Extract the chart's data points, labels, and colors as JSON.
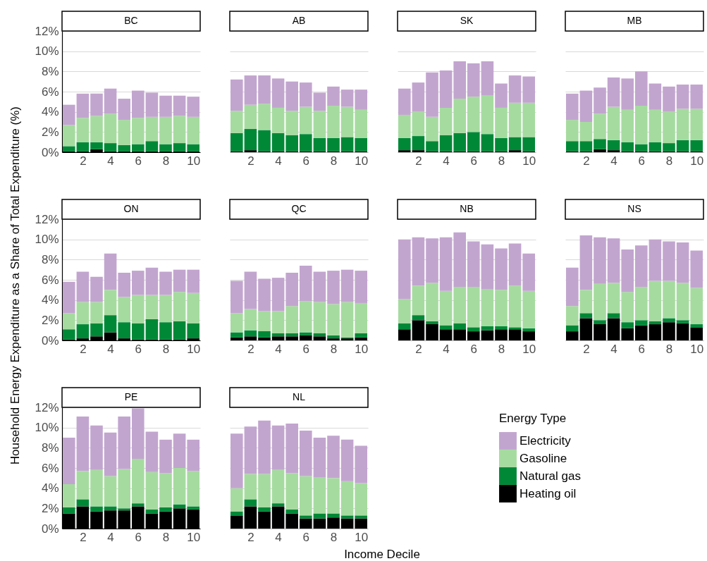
{
  "chart_data": [
    {
      "type": "bar",
      "title": "BC",
      "legend": "bottom right",
      "legend_title": "Energy Type",
      "stacked": true,
      "x": [
        1,
        2,
        3,
        4,
        5,
        6,
        7,
        8,
        9,
        10
      ],
      "xlim": [
        0.5,
        10.5
      ],
      "xticks": [
        2,
        4,
        6,
        8,
        10
      ],
      "ylim": [
        0,
        12
      ],
      "yticks": [
        {
          "value": 0,
          "label": "0%"
        },
        {
          "value": 2,
          "label": "2%"
        },
        {
          "value": 4,
          "label": "4%"
        },
        {
          "value": 6,
          "label": "6%"
        },
        {
          "value": 8,
          "label": "8%"
        },
        {
          "value": 10,
          "label": "10%"
        },
        {
          "value": 12,
          "label": "12%"
        }
      ],
      "grid": "y",
      "series": [
        {
          "name": "Heating oil",
          "color": "#000000",
          "values": [
            0.1,
            0.1,
            0.3,
            0.1,
            0.1,
            0.1,
            0.1,
            0.1,
            0.1,
            0.1
          ]
        },
        {
          "name": "Natural gas",
          "color": "#008837",
          "values": [
            0.5,
            0.9,
            0.7,
            0.8,
            0.6,
            0.7,
            1.0,
            0.7,
            0.8,
            0.7
          ]
        },
        {
          "name": "Gasoline",
          "color": "#a6dba0",
          "values": [
            2.1,
            2.4,
            2.6,
            2.9,
            2.5,
            2.6,
            2.4,
            2.7,
            2.7,
            2.7
          ]
        },
        {
          "name": "Electricity",
          "color": "#c2a5cf",
          "values": [
            2.0,
            2.4,
            2.2,
            2.5,
            2.1,
            2.7,
            2.4,
            2.1,
            2.0,
            2.0
          ]
        }
      ]
    },
    {
      "type": "bar",
      "title": "AB",
      "stacked": true,
      "x": [
        1,
        2,
        3,
        4,
        5,
        6,
        7,
        8,
        9,
        10
      ],
      "xlim": [
        0.5,
        10.5
      ],
      "xticks": [
        2,
        4,
        6,
        8,
        10
      ],
      "ylim": [
        0,
        12
      ],
      "yticks": [
        {
          "value": 0,
          "label": "0%"
        },
        {
          "value": 2,
          "label": "2%"
        },
        {
          "value": 4,
          "label": "4%"
        },
        {
          "value": 6,
          "label": "6%"
        },
        {
          "value": 8,
          "label": "8%"
        },
        {
          "value": 10,
          "label": "10%"
        },
        {
          "value": 12,
          "label": "12%"
        }
      ],
      "grid": "y",
      "tick_labels": "x",
      "series": [
        {
          "name": "Heating oil",
          "color": "#000000",
          "values": [
            0.1,
            0.2,
            0.1,
            0.1,
            0.1,
            0.1,
            0.1,
            0.1,
            0.1,
            0.1
          ]
        },
        {
          "name": "Natural gas",
          "color": "#008837",
          "values": [
            1.8,
            2.1,
            2.1,
            1.8,
            1.6,
            1.7,
            1.3,
            1.3,
            1.4,
            1.3
          ]
        },
        {
          "name": "Gasoline",
          "color": "#a6dba0",
          "values": [
            2.2,
            2.4,
            2.6,
            2.5,
            2.4,
            2.7,
            2.7,
            3.2,
            3.0,
            2.8
          ]
        },
        {
          "name": "Electricity",
          "color": "#c2a5cf",
          "values": [
            3.1,
            2.9,
            2.8,
            2.9,
            2.9,
            2.4,
            1.8,
            1.9,
            1.7,
            2.0
          ]
        }
      ]
    },
    {
      "type": "bar",
      "title": "SK",
      "stacked": true,
      "x": [
        1,
        2,
        3,
        4,
        5,
        6,
        7,
        8,
        9,
        10
      ],
      "xlim": [
        0.5,
        10.5
      ],
      "xticks": [
        2,
        4,
        6,
        8,
        10
      ],
      "ylim": [
        0,
        12
      ],
      "yticks": [
        {
          "value": 0,
          "label": "0%"
        },
        {
          "value": 2,
          "label": "2%"
        },
        {
          "value": 4,
          "label": "4%"
        },
        {
          "value": 6,
          "label": "6%"
        },
        {
          "value": 8,
          "label": "8%"
        },
        {
          "value": 10,
          "label": "10%"
        },
        {
          "value": 12,
          "label": "12%"
        }
      ],
      "grid": "y",
      "tick_labels": "x",
      "series": [
        {
          "name": "Heating oil",
          "color": "#000000",
          "values": [
            0.2,
            0.2,
            0.1,
            0.1,
            0.1,
            0.1,
            0.1,
            0.1,
            0.2,
            0.1
          ]
        },
        {
          "name": "Natural gas",
          "color": "#008837",
          "values": [
            1.2,
            1.4,
            1.0,
            1.6,
            1.8,
            1.9,
            1.7,
            1.3,
            1.3,
            1.4
          ]
        },
        {
          "name": "Gasoline",
          "color": "#a6dba0",
          "values": [
            2.3,
            2.4,
            2.4,
            2.7,
            3.4,
            3.5,
            3.8,
            3.0,
            3.4,
            3.4
          ]
        },
        {
          "name": "Electricity",
          "color": "#c2a5cf",
          "values": [
            2.6,
            2.9,
            4.4,
            3.7,
            3.7,
            3.3,
            3.4,
            2.4,
            2.7,
            2.6
          ]
        }
      ]
    },
    {
      "type": "bar",
      "title": "MB",
      "stacked": true,
      "x": [
        1,
        2,
        3,
        4,
        5,
        6,
        7,
        8,
        9,
        10
      ],
      "xlim": [
        0.5,
        10.5
      ],
      "xticks": [
        2,
        4,
        6,
        8,
        10
      ],
      "ylim": [
        0,
        12
      ],
      "yticks": [
        {
          "value": 0,
          "label": "0%"
        },
        {
          "value": 2,
          "label": "2%"
        },
        {
          "value": 4,
          "label": "4%"
        },
        {
          "value": 6,
          "label": "6%"
        },
        {
          "value": 8,
          "label": "8%"
        },
        {
          "value": 10,
          "label": "10%"
        },
        {
          "value": 12,
          "label": "12%"
        }
      ],
      "grid": "y",
      "tick_labels": "x",
      "series": [
        {
          "name": "Heating oil",
          "color": "#000000",
          "values": [
            0.1,
            0.1,
            0.3,
            0.2,
            0.1,
            0.1,
            0.1,
            0.1,
            0.1,
            0.1
          ]
        },
        {
          "name": "Natural gas",
          "color": "#008837",
          "values": [
            1.0,
            1.0,
            1.0,
            1.0,
            0.9,
            0.7,
            0.9,
            0.8,
            1.1,
            1.1
          ]
        },
        {
          "name": "Gasoline",
          "color": "#a6dba0",
          "values": [
            2.1,
            1.9,
            2.5,
            3.3,
            3.2,
            3.8,
            3.2,
            3.1,
            3.1,
            3.1
          ]
        },
        {
          "name": "Electricity",
          "color": "#c2a5cf",
          "values": [
            2.6,
            3.1,
            2.6,
            2.9,
            3.1,
            3.4,
            2.6,
            2.5,
            2.4,
            2.4
          ]
        }
      ]
    },
    {
      "type": "bar",
      "title": "ON",
      "ylabel": "Household Energy Expenditure as a Share of Total Expenditure (%)",
      "stacked": true,
      "x": [
        1,
        2,
        3,
        4,
        5,
        6,
        7,
        8,
        9,
        10
      ],
      "xlim": [
        0.5,
        10.5
      ],
      "xticks": [
        2,
        4,
        6,
        8,
        10
      ],
      "ylim": [
        0,
        12
      ],
      "yticks": [
        {
          "value": 0,
          "label": "0%"
        },
        {
          "value": 2,
          "label": "2%"
        },
        {
          "value": 4,
          "label": "4%"
        },
        {
          "value": 6,
          "label": "6%"
        },
        {
          "value": 8,
          "label": "8%"
        },
        {
          "value": 10,
          "label": "10%"
        },
        {
          "value": 12,
          "label": "12%"
        }
      ],
      "grid": "y",
      "series": [
        {
          "name": "Heating oil",
          "color": "#000000",
          "values": [
            0.1,
            0.2,
            0.4,
            0.8,
            0.2,
            0.1,
            0.1,
            0.1,
            0.1,
            0.2
          ]
        },
        {
          "name": "Natural gas",
          "color": "#008837",
          "values": [
            1.0,
            1.4,
            1.3,
            1.7,
            1.6,
            1.6,
            2.0,
            1.7,
            1.8,
            1.5
          ]
        },
        {
          "name": "Gasoline",
          "color": "#a6dba0",
          "values": [
            1.6,
            2.2,
            2.1,
            2.5,
            2.5,
            2.8,
            2.4,
            2.7,
            2.9,
            3.0
          ]
        },
        {
          "name": "Electricity",
          "color": "#c2a5cf",
          "values": [
            3.1,
            3.0,
            2.5,
            3.6,
            2.4,
            2.4,
            2.7,
            2.3,
            2.2,
            2.3
          ]
        }
      ]
    },
    {
      "type": "bar",
      "title": "QC",
      "stacked": true,
      "x": [
        1,
        2,
        3,
        4,
        5,
        6,
        7,
        8,
        9,
        10
      ],
      "xlim": [
        0.5,
        10.5
      ],
      "xticks": [
        2,
        4,
        6,
        8,
        10
      ],
      "ylim": [
        0,
        12
      ],
      "yticks": [
        {
          "value": 0,
          "label": "0%"
        },
        {
          "value": 2,
          "label": "2%"
        },
        {
          "value": 4,
          "label": "4%"
        },
        {
          "value": 6,
          "label": "6%"
        },
        {
          "value": 8,
          "label": "8%"
        },
        {
          "value": 10,
          "label": "10%"
        },
        {
          "value": 12,
          "label": "12%"
        }
      ],
      "grid": "y",
      "tick_labels": "x",
      "series": [
        {
          "name": "Heating oil",
          "color": "#000000",
          "values": [
            0.3,
            0.4,
            0.3,
            0.4,
            0.4,
            0.5,
            0.4,
            0.2,
            0.2,
            0.3
          ]
        },
        {
          "name": "Natural gas",
          "color": "#008837",
          "values": [
            0.5,
            0.6,
            0.6,
            0.3,
            0.3,
            0.3,
            0.3,
            0.3,
            0.1,
            0.4
          ]
        },
        {
          "name": "Gasoline",
          "color": "#a6dba0",
          "values": [
            1.9,
            2.1,
            2.0,
            2.2,
            2.7,
            3.1,
            3.1,
            3.1,
            3.5,
            3.0
          ]
        },
        {
          "name": "Electricity",
          "color": "#c2a5cf",
          "values": [
            3.2,
            3.7,
            3.2,
            3.3,
            3.3,
            3.5,
            3.0,
            3.3,
            3.2,
            3.2
          ]
        }
      ]
    },
    {
      "type": "bar",
      "title": "NB",
      "stacked": true,
      "x": [
        1,
        2,
        3,
        4,
        5,
        6,
        7,
        8,
        9,
        10
      ],
      "xlim": [
        0.5,
        10.5
      ],
      "xticks": [
        2,
        4,
        6,
        8,
        10
      ],
      "ylim": [
        0,
        12
      ],
      "yticks": [
        {
          "value": 0,
          "label": "0%"
        },
        {
          "value": 2,
          "label": "2%"
        },
        {
          "value": 4,
          "label": "4%"
        },
        {
          "value": 6,
          "label": "6%"
        },
        {
          "value": 8,
          "label": "8%"
        },
        {
          "value": 10,
          "label": "10%"
        },
        {
          "value": 12,
          "label": "12%"
        }
      ],
      "grid": "y",
      "tick_labels": "x",
      "series": [
        {
          "name": "Heating oil",
          "color": "#000000",
          "values": [
            1.1,
            2.0,
            1.6,
            1.1,
            1.1,
            0.9,
            1.0,
            1.1,
            1.1,
            0.9
          ]
        },
        {
          "name": "Natural gas",
          "color": "#008837",
          "values": [
            0.6,
            0.5,
            0.3,
            0.4,
            0.6,
            0.4,
            0.4,
            0.3,
            0.2,
            0.3
          ]
        },
        {
          "name": "Gasoline",
          "color": "#a6dba0",
          "values": [
            2.4,
            2.9,
            3.8,
            3.4,
            3.6,
            4.0,
            3.7,
            3.6,
            4.1,
            3.7
          ]
        },
        {
          "name": "Electricity",
          "color": "#c2a5cf",
          "values": [
            5.9,
            4.8,
            4.4,
            5.3,
            5.4,
            4.5,
            4.4,
            4.1,
            4.2,
            3.7
          ]
        }
      ]
    },
    {
      "type": "bar",
      "title": "NS",
      "stacked": true,
      "x": [
        1,
        2,
        3,
        4,
        5,
        6,
        7,
        8,
        9,
        10
      ],
      "xlim": [
        0.5,
        10.5
      ],
      "xticks": [
        2,
        4,
        6,
        8,
        10
      ],
      "ylim": [
        0,
        12
      ],
      "yticks": [
        {
          "value": 0,
          "label": "0%"
        },
        {
          "value": 2,
          "label": "2%"
        },
        {
          "value": 4,
          "label": "4%"
        },
        {
          "value": 6,
          "label": "6%"
        },
        {
          "value": 8,
          "label": "8%"
        },
        {
          "value": 10,
          "label": "10%"
        },
        {
          "value": 12,
          "label": "12%"
        }
      ],
      "grid": "y",
      "tick_labels": "x",
      "series": [
        {
          "name": "Heating oil",
          "color": "#000000",
          "values": [
            0.9,
            2.2,
            1.6,
            2.2,
            1.2,
            1.5,
            1.6,
            1.8,
            1.7,
            1.3
          ]
        },
        {
          "name": "Natural gas",
          "color": "#008837",
          "values": [
            0.6,
            0.5,
            0.4,
            0.5,
            0.6,
            0.5,
            0.3,
            0.4,
            0.3,
            0.3
          ]
        },
        {
          "name": "Gasoline",
          "color": "#a6dba0",
          "values": [
            1.9,
            2.3,
            3.6,
            3.0,
            3.0,
            3.3,
            4.0,
            3.7,
            3.7,
            3.6
          ]
        },
        {
          "name": "Electricity",
          "color": "#c2a5cf",
          "values": [
            3.8,
            5.4,
            4.6,
            4.4,
            4.2,
            4.1,
            4.1,
            3.9,
            4.0,
            3.7
          ]
        }
      ]
    },
    {
      "type": "bar",
      "title": "PE",
      "stacked": true,
      "x": [
        1,
        2,
        3,
        4,
        5,
        6,
        7,
        8,
        9,
        10
      ],
      "xlim": [
        0.5,
        10.5
      ],
      "xticks": [
        2,
        4,
        6,
        8,
        10
      ],
      "ylim": [
        0,
        12
      ],
      "yticks": [
        {
          "value": 0,
          "label": "0%"
        },
        {
          "value": 2,
          "label": "2%"
        },
        {
          "value": 4,
          "label": "4%"
        },
        {
          "value": 6,
          "label": "6%"
        },
        {
          "value": 8,
          "label": "8%"
        },
        {
          "value": 10,
          "label": "10%"
        },
        {
          "value": 12,
          "label": "12%"
        }
      ],
      "grid": "y",
      "series": [
        {
          "name": "Heating oil",
          "color": "#000000",
          "values": [
            1.5,
            2.2,
            1.7,
            1.8,
            1.8,
            2.2,
            1.5,
            1.7,
            2.0,
            1.9
          ]
        },
        {
          "name": "Natural gas",
          "color": "#008837",
          "values": [
            0.6,
            0.7,
            0.5,
            0.4,
            0.2,
            0.3,
            0.4,
            0.4,
            0.4,
            0.3
          ]
        },
        {
          "name": "Gasoline",
          "color": "#a6dba0",
          "values": [
            2.3,
            2.8,
            3.6,
            3.0,
            3.9,
            4.4,
            3.7,
            3.4,
            3.6,
            3.5
          ]
        },
        {
          "name": "Electricity",
          "color": "#c2a5cf",
          "values": [
            4.6,
            5.4,
            4.4,
            4.3,
            5.2,
            5.0,
            4.0,
            3.3,
            3.4,
            3.1
          ]
        }
      ]
    },
    {
      "type": "bar",
      "title": "NL",
      "xlabel": "Income Decile",
      "stacked": true,
      "x": [
        1,
        2,
        3,
        4,
        5,
        6,
        7,
        8,
        9,
        10
      ],
      "xlim": [
        0.5,
        10.5
      ],
      "xticks": [
        2,
        4,
        6,
        8,
        10
      ],
      "ylim": [
        0,
        12
      ],
      "yticks": [
        {
          "value": 0,
          "label": "0%"
        },
        {
          "value": 2,
          "label": "2%"
        },
        {
          "value": 4,
          "label": "4%"
        },
        {
          "value": 6,
          "label": "6%"
        },
        {
          "value": 8,
          "label": "8%"
        },
        {
          "value": 10,
          "label": "10%"
        },
        {
          "value": 12,
          "label": "12%"
        }
      ],
      "grid": "y",
      "tick_labels": "x",
      "series": [
        {
          "name": "Heating oil",
          "color": "#000000",
          "values": [
            1.3,
            2.2,
            1.7,
            2.2,
            1.5,
            1.0,
            1.0,
            1.1,
            1.0,
            1.0
          ]
        },
        {
          "name": "Natural gas",
          "color": "#008837",
          "values": [
            0.4,
            0.7,
            0.4,
            0.3,
            0.4,
            0.3,
            0.5,
            0.4,
            0.3,
            0.3
          ]
        },
        {
          "name": "Gasoline",
          "color": "#a6dba0",
          "values": [
            2.3,
            2.5,
            3.3,
            3.3,
            3.6,
            3.9,
            3.6,
            3.5,
            3.4,
            3.2
          ]
        },
        {
          "name": "Electricity",
          "color": "#c2a5cf",
          "values": [
            5.4,
            4.7,
            5.3,
            4.4,
            4.9,
            4.5,
            3.9,
            4.2,
            4.1,
            3.7
          ]
        }
      ]
    }
  ]
}
